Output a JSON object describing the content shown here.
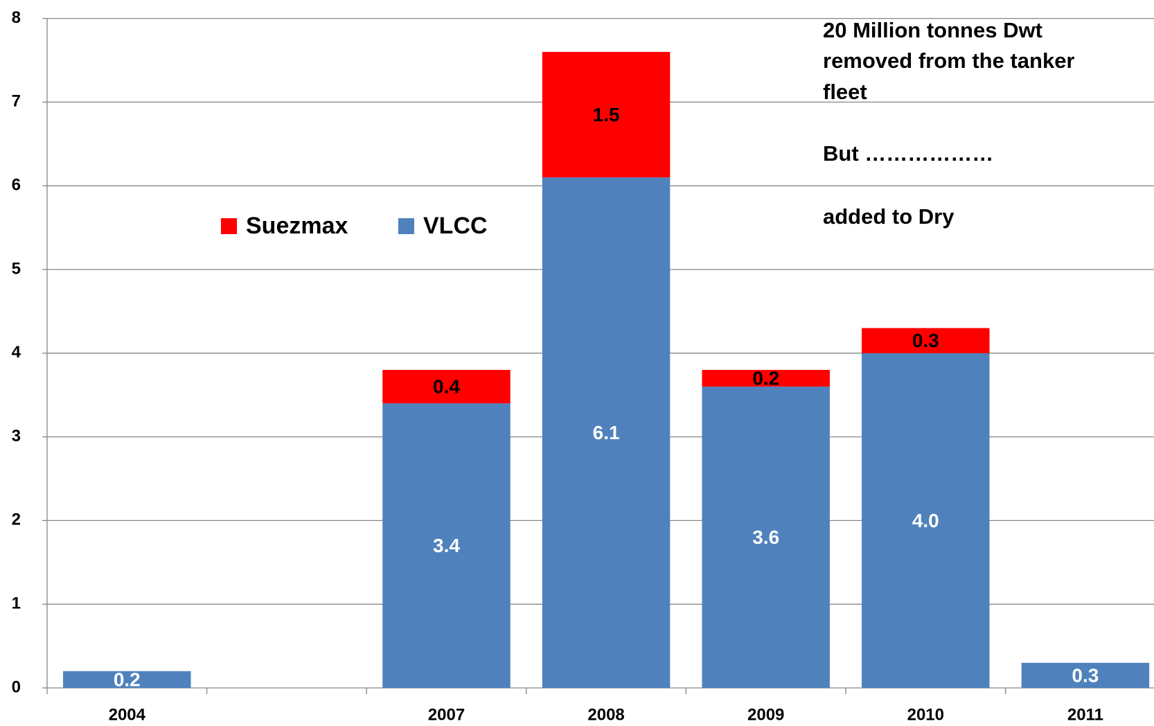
{
  "chart_data": {
    "type": "stacked_bar",
    "categories": [
      "2004",
      null,
      "2007",
      "2008",
      "2009",
      "2010",
      "2011"
    ],
    "series": [
      {
        "name": "VLCC",
        "color": "#4f81bd",
        "values": [
          0.2,
          null,
          3.4,
          6.1,
          3.6,
          4.0,
          0.3
        ],
        "value_labels": [
          "0.2",
          null,
          "3.4",
          "6.1",
          "3.6",
          "4.0",
          "0.3"
        ],
        "label_color": "#ffffff"
      },
      {
        "name": "Suezmax",
        "color": "#ff0000",
        "values": [
          null,
          null,
          0.4,
          1.5,
          0.2,
          0.3,
          null
        ],
        "value_labels": [
          null,
          null,
          "0.4",
          "1.5",
          "0.2",
          "0.3",
          null
        ],
        "label_color": "#000000"
      }
    ],
    "ylim": [
      0,
      8
    ],
    "yticks": [
      0,
      1,
      2,
      3,
      4,
      5,
      6,
      7,
      8
    ],
    "grid": true,
    "legend": "center",
    "annotation": [
      "20 Million tonnes Dwt",
      "removed from the tanker",
      "fleet",
      "But ………………",
      "added to Dry"
    ]
  }
}
